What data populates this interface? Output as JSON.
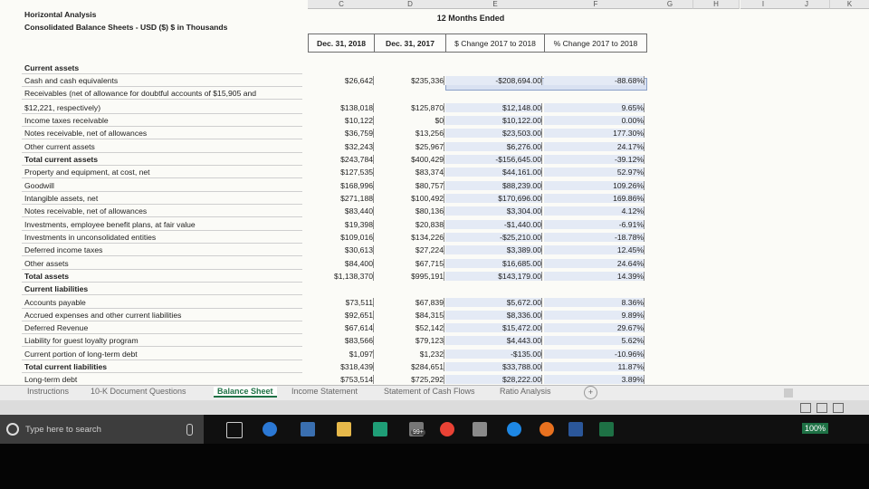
{
  "columns": [
    "C",
    "D",
    "E",
    "F",
    "G",
    "H",
    "I",
    "J",
    "K"
  ],
  "title_lines": {
    "line1": "Horizontal Analysis",
    "line2": "Consolidated Balance Sheets - USD ($) $ in Thousands"
  },
  "period_header": "12 Months Ended",
  "headers": {
    "col1": "Dec. 31, 2018",
    "col2": "Dec. 31, 2017",
    "col3": "$ Change 2017 to 2018",
    "col4": "% Change 2017 to 2018"
  },
  "rows": [
    {
      "label": "Current assets",
      "bold": true,
      "v2018": "",
      "v2017": "",
      "change": "",
      "pct": ""
    },
    {
      "label": "Cash and cash equivalents",
      "bold": false,
      "v2018": "$26,642",
      "v2017": "$235,336",
      "change": "-$208,694.00",
      "pct": "-88.68%"
    },
    {
      "label": "Receivables (net of allowance for doubtful accounts of $15,905 and",
      "bold": false,
      "v2018": "",
      "v2017": "",
      "change": "",
      "pct": ""
    },
    {
      "label": "$12,221, respectively)",
      "bold": false,
      "v2018": "$138,018",
      "v2017": "$125,870",
      "change": "$12,148.00",
      "pct": "9.65%"
    },
    {
      "label": "Income taxes receivable",
      "bold": false,
      "v2018": "$10,122",
      "v2017": "$0",
      "change": "$10,122.00",
      "pct": "0.00%"
    },
    {
      "label": "Notes receivable, net of allowances",
      "bold": false,
      "v2018": "$36,759",
      "v2017": "$13,256",
      "change": "$23,503.00",
      "pct": "177.30%"
    },
    {
      "label": "Other current assets",
      "bold": false,
      "v2018": "$32,243",
      "v2017": "$25,967",
      "change": "$6,276.00",
      "pct": "24.17%"
    },
    {
      "label": "Total current assets",
      "bold": true,
      "v2018": "$243,784",
      "v2017": "$400,429",
      "change": "-$156,645.00",
      "pct": "-39.12%"
    },
    {
      "label": "Property and equipment, at cost, net",
      "bold": false,
      "v2018": "$127,535",
      "v2017": "$83,374",
      "change": "$44,161.00",
      "pct": "52.97%"
    },
    {
      "label": "Goodwill",
      "bold": false,
      "v2018": "$168,996",
      "v2017": "$80,757",
      "change": "$88,239.00",
      "pct": "109.26%"
    },
    {
      "label": "Intangible assets, net",
      "bold": false,
      "v2018": "$271,188",
      "v2017": "$100,492",
      "change": "$170,696.00",
      "pct": "169.86%"
    },
    {
      "label": "Notes receivable, net of allowances",
      "bold": false,
      "v2018": "$83,440",
      "v2017": "$80,136",
      "change": "$3,304.00",
      "pct": "4.12%"
    },
    {
      "label": "Investments, employee benefit plans, at fair value",
      "bold": false,
      "v2018": "$19,398",
      "v2017": "$20,838",
      "change": "-$1,440.00",
      "pct": "-6.91%"
    },
    {
      "label": "Investments in unconsolidated entities",
      "bold": false,
      "v2018": "$109,016",
      "v2017": "$134,226",
      "change": "-$25,210.00",
      "pct": "-18.78%"
    },
    {
      "label": "Deferred income taxes",
      "bold": false,
      "v2018": "$30,613",
      "v2017": "$27,224",
      "change": "$3,389.00",
      "pct": "12.45%"
    },
    {
      "label": "Other assets",
      "bold": false,
      "v2018": "$84,400",
      "v2017": "$67,715",
      "change": "$16,685.00",
      "pct": "24.64%"
    },
    {
      "label": "Total assets",
      "bold": true,
      "v2018": "$1,138,370",
      "v2017": "$995,191",
      "change": "$143,179.00",
      "pct": "14.39%"
    },
    {
      "label": "Current liabilities",
      "bold": true,
      "v2018": "",
      "v2017": "",
      "change": "",
      "pct": ""
    },
    {
      "label": "Accounts payable",
      "bold": false,
      "v2018": "$73,511",
      "v2017": "$67,839",
      "change": "$5,672.00",
      "pct": "8.36%"
    },
    {
      "label": "Accrued expenses and other current liabilities",
      "bold": false,
      "v2018": "$92,651",
      "v2017": "$84,315",
      "change": "$8,336.00",
      "pct": "9.89%"
    },
    {
      "label": "Deferred Revenue",
      "bold": false,
      "v2018": "$67,614",
      "v2017": "$52,142",
      "change": "$15,472.00",
      "pct": "29.67%"
    },
    {
      "label": "Liability for guest loyalty program",
      "bold": false,
      "v2018": "$83,566",
      "v2017": "$79,123",
      "change": "$4,443.00",
      "pct": "5.62%"
    },
    {
      "label": "Current portion of long-term debt",
      "bold": false,
      "v2018": "$1,097",
      "v2017": "$1,232",
      "change": "-$135.00",
      "pct": "-10.96%"
    },
    {
      "label": "Total current liabilities",
      "bold": true,
      "v2018": "$318,439",
      "v2017": "$284,651",
      "change": "$33,788.00",
      "pct": "11.87%"
    },
    {
      "label": "Long-term debt",
      "bold": false,
      "v2018": "$753,514",
      "v2017": "$725,292",
      "change": "$28,222.00",
      "pct": "3.89%"
    }
  ],
  "sheet_tabs": [
    {
      "label": "Instructions",
      "active": false
    },
    {
      "label": "10-K Document Questions",
      "active": false
    },
    {
      "label": "Balance Sheet",
      "active": true
    },
    {
      "label": "Income Statement",
      "active": false
    },
    {
      "label": "Statement of Cash Flows",
      "active": false
    },
    {
      "label": "Ratio Analysis",
      "active": false
    }
  ],
  "add_sheet": "+",
  "status": {
    "zoom": "100%"
  },
  "taskbar": {
    "search_placeholder": "Type here to search",
    "badge": "99+"
  },
  "colors": {
    "accent": "#1e7145",
    "shade": "#d9e1f1",
    "taskbar": "#101010"
  }
}
